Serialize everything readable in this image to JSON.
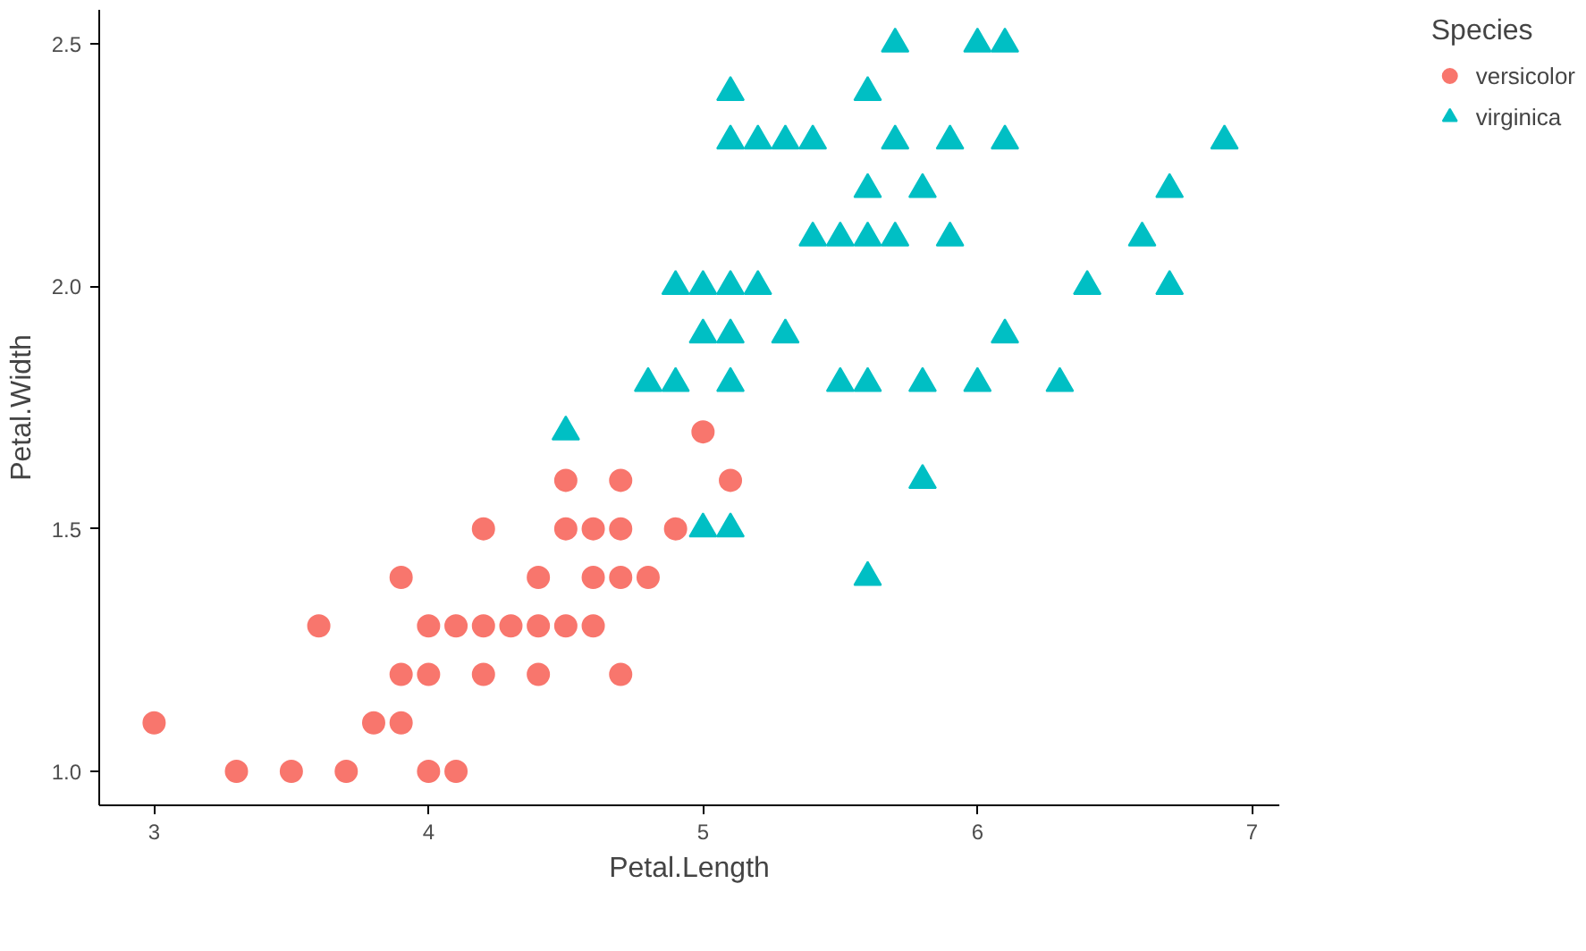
{
  "chart_data": {
    "type": "scatter",
    "xlabel": "Petal.Length",
    "ylabel": "Petal.Width",
    "legend_title": "Species",
    "xlim": [
      2.8,
      7.1
    ],
    "ylim": [
      0.93,
      2.57
    ],
    "xticks": [
      3,
      4,
      5,
      6,
      7
    ],
    "yticks": [
      {
        "value": 1.0,
        "label": "1.0"
      },
      1.5,
      {
        "value": 2.0,
        "label": "2.0"
      },
      2.5
    ],
    "grid": false,
    "legend": "right",
    "series": [
      {
        "name": "versicolor",
        "color": "#f8766d",
        "marker": "circle",
        "x": [
          4.7,
          4.5,
          4.9,
          4.0,
          4.6,
          4.5,
          4.7,
          3.3,
          4.6,
          3.9,
          3.5,
          4.2,
          4.0,
          3.6,
          4.4,
          4.1,
          3.9,
          4.7,
          4.3,
          4.8,
          5.0,
          3.8,
          3.7,
          3.9,
          5.1,
          4.5,
          4.7,
          4.4,
          4.1,
          4.4,
          4.6,
          4.0,
          4.2,
          4.2,
          3.0
        ],
        "values": [
          1.4,
          1.5,
          1.5,
          1.3,
          1.5,
          1.3,
          1.6,
          1.0,
          1.3,
          1.4,
          1.0,
          1.5,
          1.0,
          1.3,
          1.4,
          1.0,
          1.1,
          1.2,
          1.3,
          1.4,
          1.7,
          1.1,
          1.0,
          1.2,
          1.6,
          1.6,
          1.5,
          1.3,
          1.3,
          1.2,
          1.4,
          1.2,
          1.3,
          1.2,
          1.1
        ]
      },
      {
        "name": "virginica",
        "color": "#00bfc4",
        "marker": "triangle",
        "x": [
          6.0,
          5.1,
          5.9,
          5.6,
          5.8,
          6.6,
          4.5,
          6.3,
          5.8,
          6.1,
          5.1,
          5.3,
          5.5,
          5.0,
          5.1,
          5.3,
          5.5,
          6.7,
          6.9,
          5.0,
          5.7,
          4.9,
          6.7,
          4.9,
          5.7,
          6.0,
          4.8,
          5.6,
          5.8,
          6.1,
          6.4,
          5.6,
          5.1,
          5.6,
          6.1,
          5.6,
          5.4,
          5.1,
          5.9,
          5.7,
          5.2,
          5.0,
          5.2,
          5.4,
          5.1
        ],
        "values": [
          2.5,
          1.9,
          2.1,
          1.8,
          2.2,
          2.1,
          1.7,
          1.8,
          1.8,
          2.5,
          2.0,
          1.9,
          2.1,
          2.0,
          2.4,
          2.3,
          1.8,
          2.2,
          2.3,
          1.5,
          2.3,
          2.0,
          2.0,
          1.8,
          2.1,
          1.8,
          1.8,
          2.1,
          1.6,
          1.9,
          2.0,
          2.2,
          1.5,
          1.4,
          2.3,
          2.4,
          2.1,
          2.3,
          2.3,
          2.5,
          2.3,
          1.9,
          2.0,
          2.3,
          1.8
        ]
      }
    ]
  }
}
